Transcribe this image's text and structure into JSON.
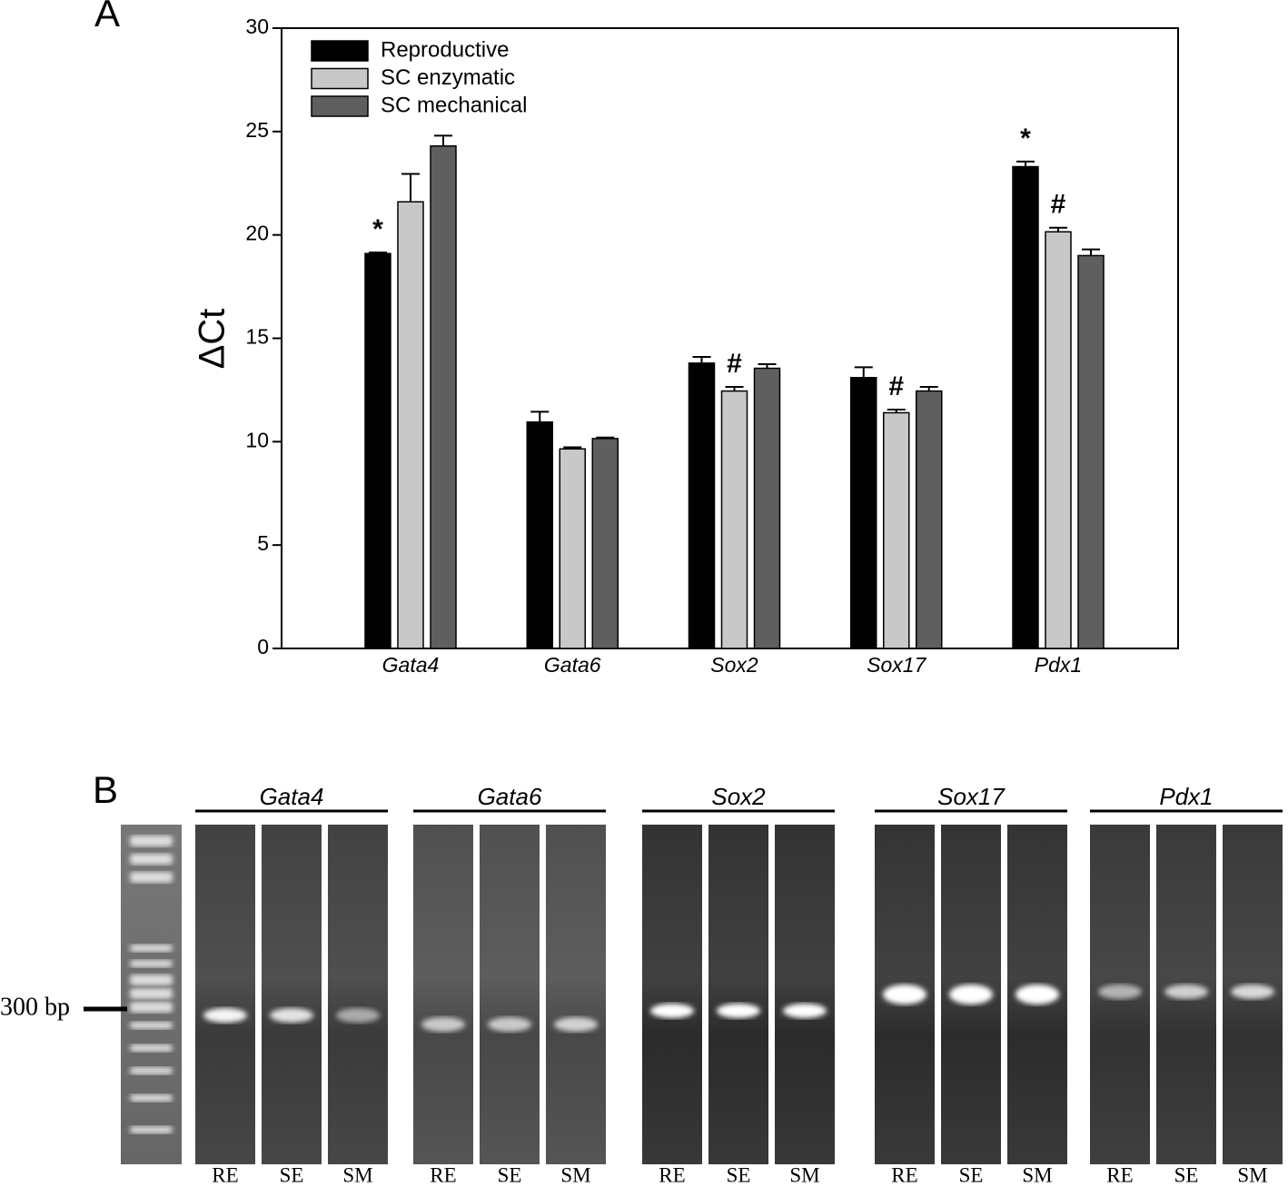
{
  "panel_labels": [
    "A",
    "B"
  ],
  "chart_data": {
    "type": "bar",
    "y_label": "ΔCt",
    "categories": [
      "Gata4",
      "Gata6",
      "Sox2",
      "Sox17",
      "Pdx1"
    ],
    "series": [
      {
        "name": "Reproductive",
        "color": "#000000",
        "values": [
          19.1,
          10.95,
          13.8,
          13.1,
          23.3
        ],
        "errors": [
          0.05,
          0.5,
          0.3,
          0.5,
          0.25
        ],
        "significance": [
          "*",
          null,
          null,
          null,
          "*"
        ]
      },
      {
        "name": "SC enzymatic",
        "color": "#c8c8c8",
        "values": [
          21.6,
          9.65,
          12.45,
          11.4,
          20.15
        ],
        "errors": [
          1.35,
          0.08,
          0.2,
          0.15,
          0.2
        ],
        "significance": [
          null,
          null,
          "#",
          "#",
          "#"
        ]
      },
      {
        "name": "SC mechanical",
        "color": "#5f5f5f",
        "values": [
          24.3,
          10.15,
          13.55,
          12.45,
          19.0
        ],
        "errors": [
          0.5,
          0.05,
          0.2,
          0.2,
          0.3
        ],
        "significance": [
          null,
          null,
          null,
          null,
          null
        ]
      }
    ],
    "ylim": [
      0,
      30
    ],
    "yticks": [
      0,
      5,
      10,
      15,
      20,
      25,
      30
    ],
    "legend": "top-left"
  },
  "gel": {
    "marker": "300 bp",
    "groups": [
      {
        "gene": "Gata4",
        "lanes": [
          "RE",
          "SE",
          "SM"
        ]
      },
      {
        "gene": "Gata6",
        "lanes": [
          "RE",
          "SE",
          "SM"
        ]
      },
      {
        "gene": "Sox2",
        "lanes": [
          "RE",
          "SE",
          "SM"
        ]
      },
      {
        "gene": "Sox17",
        "lanes": [
          "RE",
          "SE",
          "SM"
        ]
      },
      {
        "gene": "Pdx1",
        "lanes": [
          "RE",
          "SE",
          "SM"
        ]
      }
    ]
  }
}
